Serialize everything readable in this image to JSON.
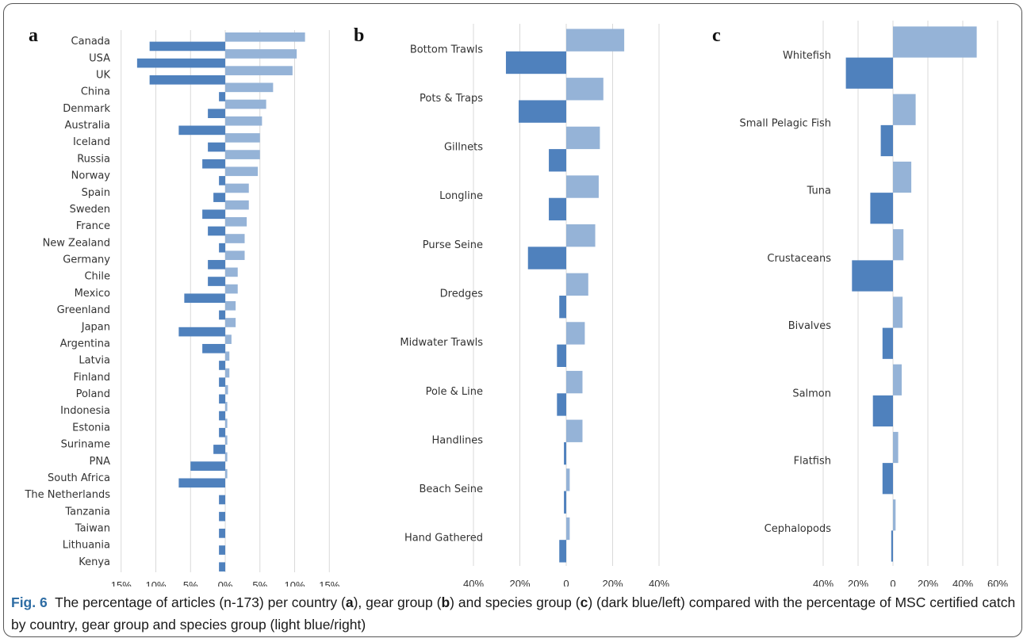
{
  "colors": {
    "articles": "#4f81bd",
    "msc": "#95b3d7",
    "grid": "#d9d9d9",
    "text": "#333333"
  },
  "caption": {
    "fig_label": "Fig. 6",
    "text_1": "The percentage of articles (n-173) per country (",
    "a": "a",
    "text_2": "), gear group (",
    "b": "b",
    "text_3": ") and species group (",
    "c": "c",
    "text_4": ") (dark blue/left) compared with the percentage of MSC certified catch by country, gear group and species group (light blue/right)"
  },
  "chart_data": [
    {
      "panel_label": "a",
      "type": "bar",
      "orientation": "horizontal",
      "xlim": [
        -15,
        15
      ],
      "x_ticks": [
        -15,
        -10,
        -5,
        0,
        5,
        10,
        15
      ],
      "x_tick_labels": [
        "15%",
        "10%",
        "5%",
        "0%",
        "5%",
        "10%",
        "15%"
      ],
      "grid": true,
      "categories": [
        "Canada",
        "USA",
        "UK",
        "China",
        "Denmark",
        "Australia",
        "Iceland",
        "Russia",
        "Norway",
        "Spain",
        "Sweden",
        "France",
        "New Zealand",
        "Germany",
        "Chile",
        "Mexico",
        "Greenland",
        "Japan",
        "Argentina",
        "Latvia",
        "Finland",
        "Poland",
        "Indonesia",
        "Estonia",
        "Suriname",
        "PNA",
        "South Africa",
        "The Netherlands",
        "Tanzania",
        "Taiwan",
        "Lithuania",
        "Kenya"
      ],
      "series": [
        {
          "values": [
            11.5,
            10.3,
            9.7,
            6.9,
            5.9,
            5.3,
            5.0,
            5.0,
            4.7,
            3.4,
            3.4,
            3.1,
            2.8,
            2.8,
            1.8,
            1.8,
            1.5,
            1.5,
            0.9,
            0.6,
            0.6,
            0.4,
            0.3,
            0.3,
            0.3,
            0.3,
            0.3,
            0.0,
            0.0,
            0.0,
            0.0,
            0.0
          ]
        },
        {
          "values": [
            10.9,
            12.7,
            10.9,
            0.9,
            2.5,
            6.7,
            2.5,
            3.3,
            0.9,
            1.7,
            3.3,
            2.5,
            0.9,
            2.5,
            2.5,
            5.9,
            0.9,
            6.7,
            3.3,
            0.9,
            0.9,
            0.9,
            0.9,
            0.9,
            1.7,
            5.0,
            6.7,
            0.9,
            0.9,
            0.9,
            0.9,
            0.9
          ]
        }
      ]
    },
    {
      "panel_label": "b",
      "type": "bar",
      "orientation": "horizontal",
      "xlim": [
        -40,
        40
      ],
      "x_ticks": [
        -40,
        -20,
        0,
        20,
        40
      ],
      "x_tick_labels": [
        "40%",
        "20%",
        "0",
        "20%",
        "40%"
      ],
      "grid": true,
      "categories": [
        "Bottom Trawls",
        "Pots & Traps",
        "Gillnets",
        "Longline",
        "Purse Seine",
        "Dredges",
        "Midwater Trawls",
        "Pole & Line",
        "Handlines",
        "Beach Seine",
        "Hand Gathered"
      ],
      "series": [
        {
          "values": [
            25,
            16,
            14.5,
            14,
            12.5,
            9.5,
            8,
            7,
            7,
            1.5,
            1.5
          ]
        },
        {
          "values": [
            26,
            20.5,
            7.5,
            7.5,
            16.5,
            3,
            4,
            4,
            1,
            1,
            3
          ]
        }
      ]
    },
    {
      "panel_label": "c",
      "type": "bar",
      "orientation": "horizontal",
      "xlim": [
        -40,
        60
      ],
      "x_ticks": [
        -40,
        -20,
        0,
        20,
        40,
        60
      ],
      "x_tick_labels": [
        "40%",
        "20%",
        "0",
        "20%",
        "40%",
        "60%"
      ],
      "grid": true,
      "categories": [
        "Whitefish",
        "Small Pelagic Fish",
        "Tuna",
        "Crustaceans",
        "Bivalves",
        "Salmon",
        "Flatfish",
        "Cephalopods"
      ],
      "series": [
        {
          "values": [
            48,
            13,
            10.5,
            6,
            5.5,
            5,
            3,
            1.5
          ]
        },
        {
          "values": [
            27,
            7,
            13,
            23.5,
            6,
            11.5,
            6,
            1
          ]
        }
      ]
    }
  ]
}
